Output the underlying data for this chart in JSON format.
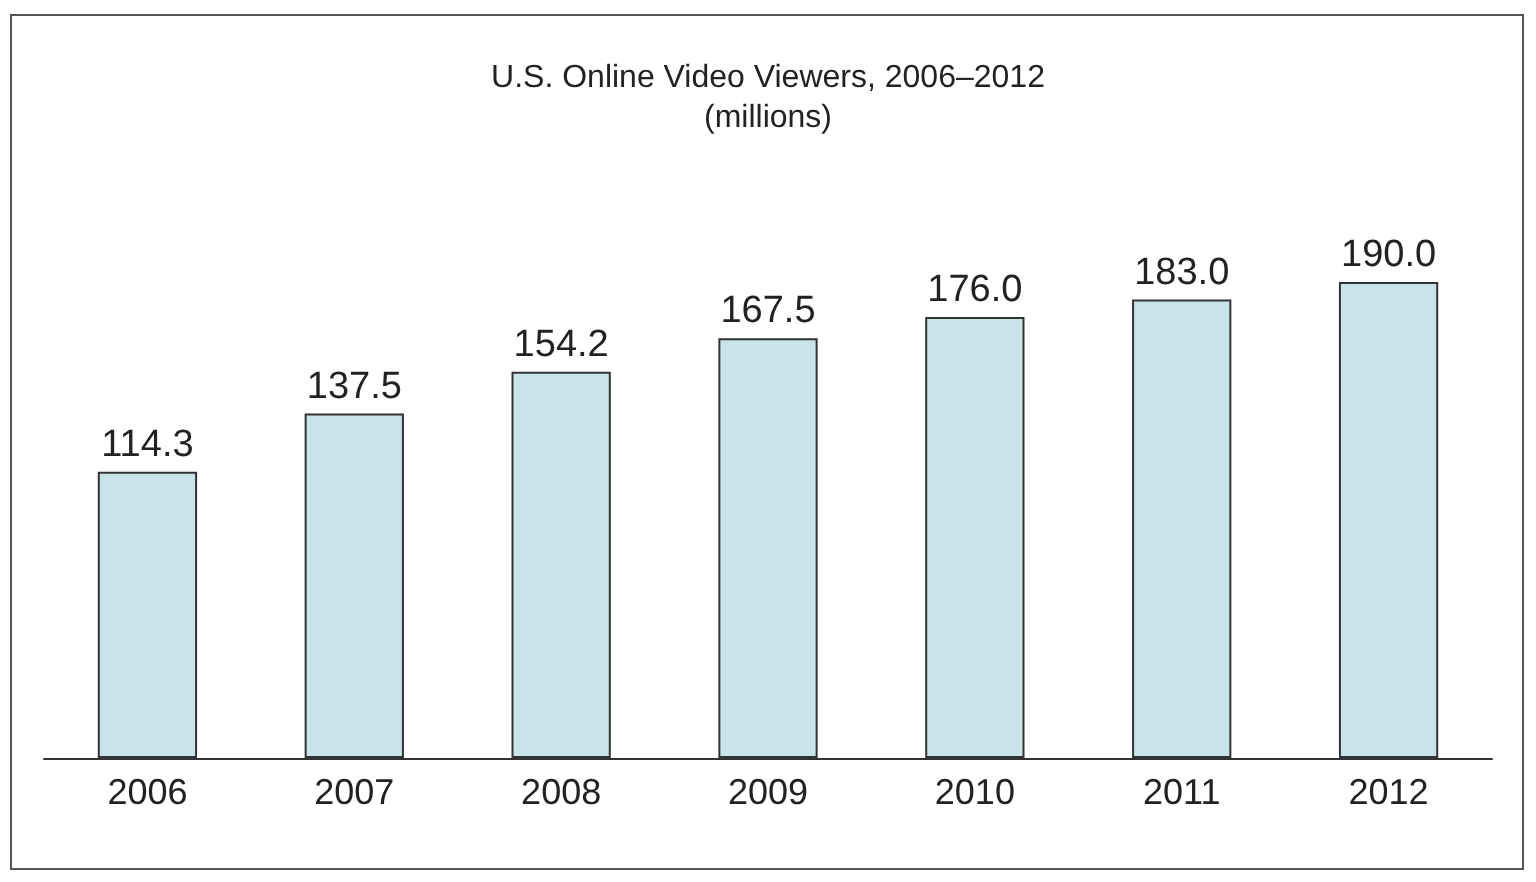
{
  "chart_data": {
    "type": "bar",
    "title": "U.S. Online Video Viewers, 2006–2012",
    "subtitle": "(millions)",
    "categories": [
      "2006",
      "2007",
      "2008",
      "2009",
      "2010",
      "2011",
      "2012"
    ],
    "values": [
      114.3,
      137.5,
      154.2,
      167.5,
      176.0,
      183.0,
      190.0
    ],
    "value_labels": [
      "114.3",
      "137.5",
      "154.2",
      "167.5",
      "176.0",
      "183.0",
      "190.0"
    ],
    "color": "#c8e4ea"
  }
}
